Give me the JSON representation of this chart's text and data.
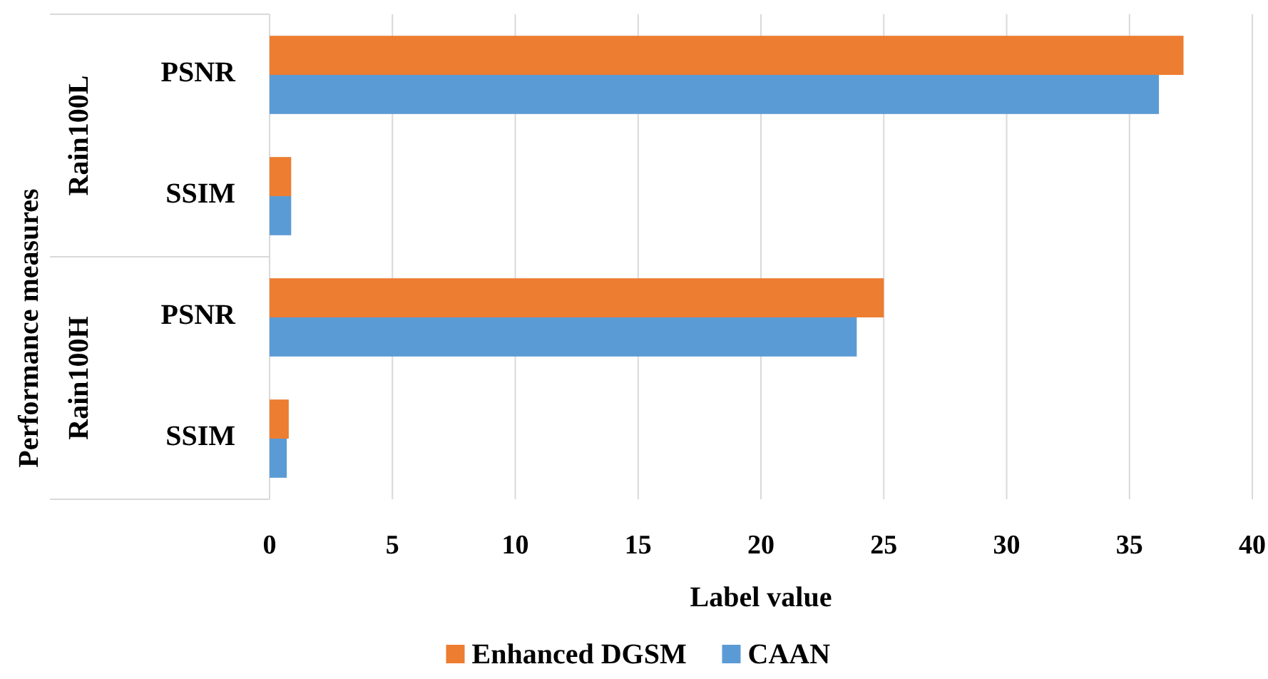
{
  "chart_data": {
    "type": "bar",
    "orientation": "horizontal",
    "xlabel": "Label value",
    "ylabel": "Performance measures",
    "categories": [
      "PSNR",
      "SSIM",
      "PSNR",
      "SSIM"
    ],
    "annotations": [
      "Rain100L",
      "Rain100H"
    ],
    "series": [
      {
        "name": "Enhanced DGSM",
        "color": "#ed7d31",
        "values": [
          37.2,
          0.88,
          25.0,
          0.78
        ]
      },
      {
        "name": "CAAN",
        "color": "#5b9bd5",
        "values": [
          36.2,
          0.88,
          23.9,
          0.7
        ]
      }
    ],
    "xlim": [
      0,
      40
    ],
    "xticks": [
      0,
      5,
      10,
      15,
      20,
      25,
      30,
      35,
      40
    ],
    "grid": "x",
    "legend": "bottom"
  }
}
